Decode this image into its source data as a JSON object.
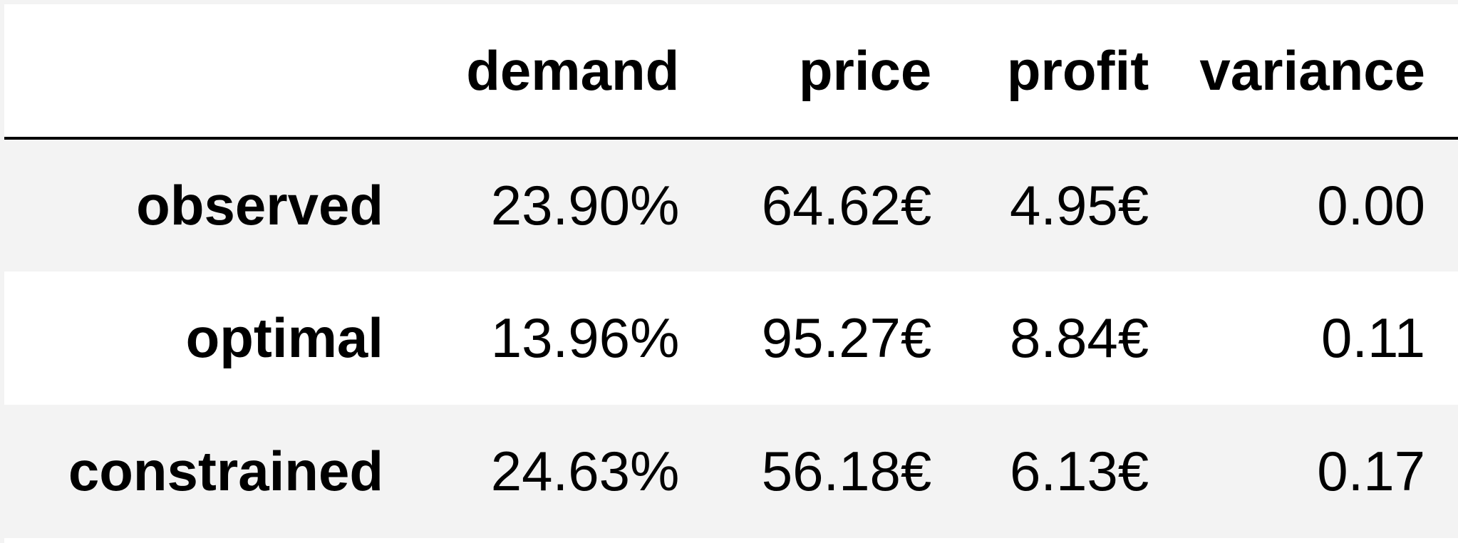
{
  "chart_data": {
    "type": "table",
    "columns": [
      "",
      "demand",
      "price",
      "profit",
      "variance"
    ],
    "rows": [
      {
        "label": "observed",
        "cells": [
          "23.90%",
          "64.62€",
          "4.95€",
          "0.00"
        ]
      },
      {
        "label": "optimal",
        "cells": [
          "13.96%",
          "95.27€",
          "8.84€",
          "0.11"
        ]
      },
      {
        "label": "constrained",
        "cells": [
          "24.63%",
          "56.18€",
          "6.13€",
          "0.17"
        ]
      }
    ]
  }
}
